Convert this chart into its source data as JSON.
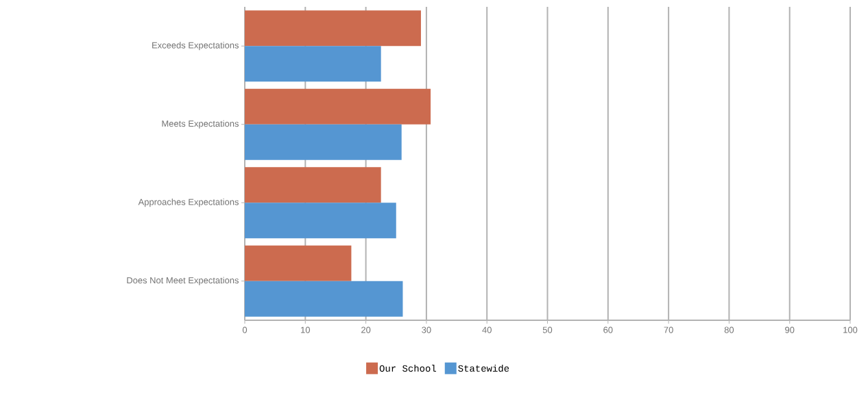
{
  "chart_data": {
    "type": "bar",
    "orientation": "horizontal",
    "categories": [
      "Exceeds Expectations",
      "Meets Expectations",
      "Approaches Expectations",
      "Does Not Meet Expectations"
    ],
    "series": [
      {
        "name": "Our School",
        "color": "#cc6b4f",
        "values": [
          29.1,
          30.7,
          22.5,
          17.6
        ]
      },
      {
        "name": "Statewide",
        "color": "#5596d2",
        "values": [
          22.5,
          25.9,
          25.0,
          26.1
        ]
      }
    ],
    "xlim": [
      0,
      100
    ],
    "xticks": [
      0,
      10,
      20,
      30,
      40,
      50,
      60,
      70,
      80,
      90,
      100
    ],
    "grid": "x",
    "legend": "bottom"
  }
}
